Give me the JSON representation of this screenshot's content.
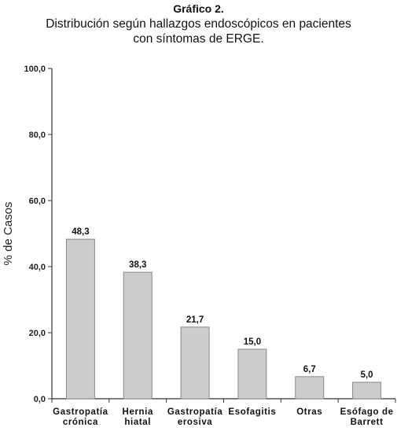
{
  "chart_data": {
    "type": "bar",
    "title": "Gráfico 2.",
    "subtitle_lines": [
      "Distribución según hallazgos endoscópicos en  pacientes",
      "con síntomas  de ERGE."
    ],
    "ylabel": "% de Casos",
    "xlabel": "",
    "ylim": [
      0,
      100
    ],
    "yticks": [
      "0,0",
      "20,0",
      "40,0",
      "60,0",
      "80,0",
      "100,0"
    ],
    "categories": [
      [
        "Gastropatía",
        "crónica"
      ],
      [
        "Hernia",
        "hiatal"
      ],
      [
        "Gastropatía",
        "erosiva"
      ],
      [
        "Esofagitis"
      ],
      [
        "Otras"
      ],
      [
        "Esófago de",
        "Barrett"
      ]
    ],
    "values": [
      48.3,
      38.3,
      21.7,
      15.0,
      6.7,
      5.0
    ],
    "data_labels": [
      "48,3",
      "38,3",
      "21,7",
      "15,0",
      "6,7",
      "5,0"
    ],
    "bar_color": "#cccccc",
    "bar_stroke": "#888888",
    "grid": false,
    "legend": "none"
  }
}
